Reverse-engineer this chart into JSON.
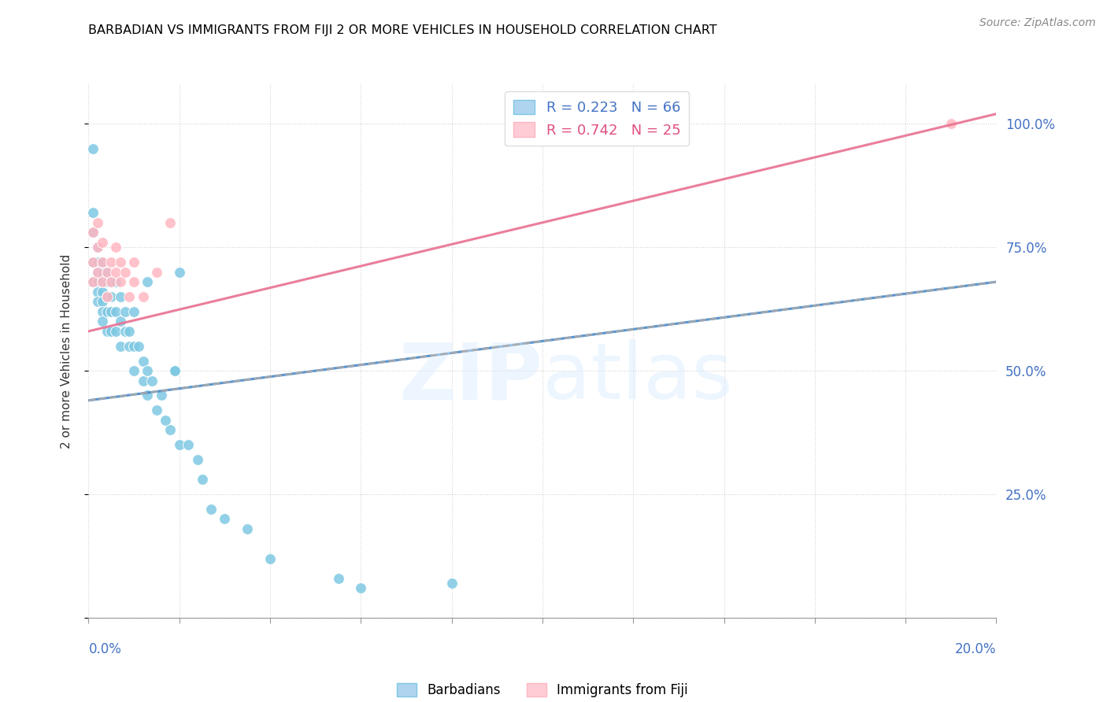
{
  "title": "BARBADIAN VS IMMIGRANTS FROM FIJI 2 OR MORE VEHICLES IN HOUSEHOLD CORRELATION CHART",
  "source": "Source: ZipAtlas.com",
  "ylabel": "2 or more Vehicles in Household",
  "color_barbadians": "#7ec8e3",
  "color_fiji": "#ffb6c1",
  "color_blue_text": "#4472c4",
  "color_pink_text": "#e05080",
  "color_trend_blue": "#7ec8e3",
  "color_trend_pink": "#e87090",
  "background": "#ffffff",
  "x_min": 0.0,
  "x_max": 0.2,
  "y_min": 0.0,
  "y_max": 1.08,
  "barbadians_x": [
    0.001,
    0.001,
    0.001,
    0.002,
    0.002,
    0.002,
    0.002,
    0.002,
    0.002,
    0.003,
    0.003,
    0.003,
    0.003,
    0.003,
    0.003,
    0.003,
    0.004,
    0.004,
    0.004,
    0.004,
    0.004,
    0.005,
    0.005,
    0.005,
    0.005,
    0.006,
    0.006,
    0.006,
    0.007,
    0.007,
    0.007,
    0.008,
    0.008,
    0.009,
    0.009,
    0.01,
    0.01,
    0.01,
    0.011,
    0.012,
    0.012,
    0.013,
    0.013,
    0.014,
    0.015,
    0.016,
    0.017,
    0.018,
    0.019,
    0.02,
    0.022,
    0.024,
    0.025,
    0.027,
    0.03,
    0.035,
    0.04,
    0.055,
    0.06,
    0.08,
    0.019,
    0.001,
    0.001,
    0.013,
    0.02
  ],
  "barbadians_y": [
    0.78,
    0.72,
    0.68,
    0.75,
    0.72,
    0.7,
    0.68,
    0.66,
    0.64,
    0.72,
    0.7,
    0.68,
    0.66,
    0.64,
    0.62,
    0.6,
    0.7,
    0.68,
    0.65,
    0.62,
    0.58,
    0.68,
    0.65,
    0.62,
    0.58,
    0.68,
    0.62,
    0.58,
    0.65,
    0.6,
    0.55,
    0.62,
    0.58,
    0.58,
    0.55,
    0.62,
    0.55,
    0.5,
    0.55,
    0.52,
    0.48,
    0.5,
    0.45,
    0.48,
    0.42,
    0.45,
    0.4,
    0.38,
    0.5,
    0.35,
    0.35,
    0.32,
    0.28,
    0.22,
    0.2,
    0.18,
    0.12,
    0.08,
    0.06,
    0.07,
    0.5,
    0.95,
    0.82,
    0.68,
    0.7
  ],
  "fiji_x": [
    0.001,
    0.001,
    0.001,
    0.002,
    0.002,
    0.002,
    0.003,
    0.003,
    0.003,
    0.004,
    0.004,
    0.005,
    0.005,
    0.006,
    0.006,
    0.007,
    0.007,
    0.008,
    0.009,
    0.01,
    0.01,
    0.012,
    0.015,
    0.018,
    0.19
  ],
  "fiji_y": [
    0.68,
    0.72,
    0.78,
    0.7,
    0.75,
    0.8,
    0.68,
    0.72,
    0.76,
    0.65,
    0.7,
    0.68,
    0.72,
    0.7,
    0.75,
    0.68,
    0.72,
    0.7,
    0.65,
    0.68,
    0.72,
    0.65,
    0.7,
    0.8,
    1.0
  ],
  "barbadians_trend_x": [
    0.0,
    0.2
  ],
  "barbadians_trend_y": [
    0.44,
    0.68
  ],
  "fiji_trend_x": [
    0.0,
    0.2
  ],
  "fiji_trend_y": [
    0.58,
    1.02
  ]
}
